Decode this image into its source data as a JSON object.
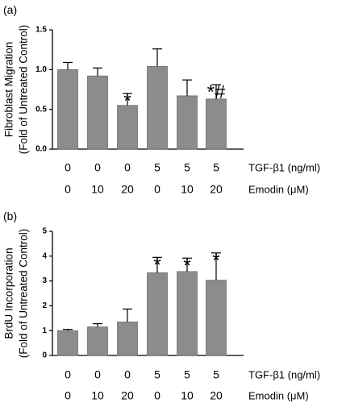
{
  "chart_data": [
    {
      "type": "bar",
      "panel_label": "(a)",
      "ylabel_line1": "Fibroblast Migration",
      "ylabel_line2": "(Fold of Untreated Control)",
      "ylim": [
        0,
        1.5
      ],
      "yticks": [
        "0.0",
        "0.5",
        "1.0",
        "1.5"
      ],
      "ytick_values": [
        0,
        0.5,
        1.0,
        1.5
      ],
      "categories": [
        "TGF-β1 0 / Emodin 0",
        "TGF-β1 0 / Emodin 10",
        "TGF-β1 0 / Emodin 20",
        "TGF-β1 5 / Emodin 0",
        "TGF-β1 5 / Emodin 10",
        "TGF-β1 5 / Emodin 20"
      ],
      "values": [
        1.0,
        0.92,
        0.55,
        1.04,
        0.67,
        0.63
      ],
      "errors": [
        0.09,
        0.1,
        0.15,
        0.22,
        0.2,
        0.18
      ],
      "annotations": [
        "",
        "",
        "*",
        "",
        "",
        "*#"
      ],
      "row1_label": "TGF-β1 (ng/ml)",
      "row1_values": [
        "0",
        "0",
        "0",
        "5",
        "5",
        "5"
      ],
      "row2_label": "Emodin (μM)",
      "row2_values": [
        "0",
        "10",
        "20",
        "0",
        "10",
        "20"
      ]
    },
    {
      "type": "bar",
      "panel_label": "(b)",
      "ylabel_line1": "BrdU Incorporation",
      "ylabel_line2": "(Fold of Untreated Control)",
      "ylim": [
        0,
        5
      ],
      "yticks": [
        "0",
        "1",
        "2",
        "3",
        "4",
        "5"
      ],
      "ytick_values": [
        0,
        1,
        2,
        3,
        4,
        5
      ],
      "categories": [
        "TGF-β1 0 / Emodin 0",
        "TGF-β1 0 / Emodin 10",
        "TGF-β1 0 / Emodin 20",
        "TGF-β1 5 / Emodin 0",
        "TGF-β1 5 / Emodin 10",
        "TGF-β1 5 / Emodin 20"
      ],
      "values": [
        1.0,
        1.15,
        1.35,
        3.33,
        3.38,
        3.03
      ],
      "errors": [
        0.05,
        0.13,
        0.52,
        0.62,
        0.54,
        1.1
      ],
      "annotations": [
        "",
        "",
        "",
        "*",
        "*",
        "*"
      ],
      "row1_label": "TGF-β1 (ng/ml)",
      "row1_values": [
        "0",
        "0",
        "0",
        "5",
        "5",
        "5"
      ],
      "row2_label": "Emodin (μM)",
      "row2_values": [
        "0",
        "10",
        "20",
        "0",
        "10",
        "20"
      ]
    }
  ]
}
